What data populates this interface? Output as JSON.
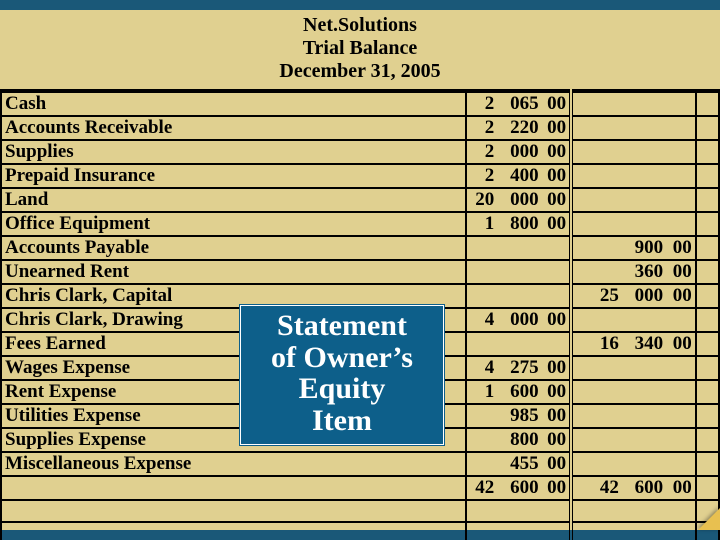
{
  "header": {
    "company": "Net.Solutions",
    "title": "Trial Balance",
    "date": "December 31, 2005"
  },
  "columns": {
    "debit_label": "",
    "credit_label": ""
  },
  "rows": [
    {
      "name": "Cash",
      "d1": "2",
      "d2": "065",
      "d3": "00",
      "c1": "",
      "c2": "",
      "c3": ""
    },
    {
      "name": "Accounts Receivable",
      "d1": "2",
      "d2": "220",
      "d3": "00",
      "c1": "",
      "c2": "",
      "c3": ""
    },
    {
      "name": "Supplies",
      "d1": "2",
      "d2": "000",
      "d3": "00",
      "c1": "",
      "c2": "",
      "c3": ""
    },
    {
      "name": "Prepaid Insurance",
      "d1": "2",
      "d2": "400",
      "d3": "00",
      "c1": "",
      "c2": "",
      "c3": ""
    },
    {
      "name": "Land",
      "d1": "20",
      "d2": "000",
      "d3": "00",
      "c1": "",
      "c2": "",
      "c3": ""
    },
    {
      "name": "Office Equipment",
      "d1": "1",
      "d2": "800",
      "d3": "00",
      "c1": "",
      "c2": "",
      "c3": ""
    },
    {
      "name": "Accounts Payable",
      "d1": "",
      "d2": "",
      "d3": "",
      "c1": "",
      "c2": "900",
      "c3": "00"
    },
    {
      "name": "Unearned Rent",
      "d1": "",
      "d2": "",
      "d3": "",
      "c1": "",
      "c2": "360",
      "c3": "00"
    },
    {
      "name": "Chris Clark, Capital",
      "d1": "",
      "d2": "",
      "d3": "",
      "c1": "25",
      "c2": "000",
      "c3": "00"
    },
    {
      "name": "Chris Clark, Drawing",
      "d1": "4",
      "d2": "000",
      "d3": "00",
      "c1": "",
      "c2": "",
      "c3": ""
    },
    {
      "name": "Fees Earned",
      "d1": "",
      "d2": "",
      "d3": "",
      "c1": "16",
      "c2": "340",
      "c3": "00"
    },
    {
      "name": "Wages Expense",
      "d1": "4",
      "d2": "275",
      "d3": "00",
      "c1": "",
      "c2": "",
      "c3": ""
    },
    {
      "name": "Rent Expense",
      "d1": "1",
      "d2": "600",
      "d3": "00",
      "c1": "",
      "c2": "",
      "c3": ""
    },
    {
      "name": "Utilities Expense",
      "d1": "",
      "d2": "985",
      "d3": "00",
      "c1": "",
      "c2": "",
      "c3": ""
    },
    {
      "name": "Supplies Expense",
      "d1": "",
      "d2": "800",
      "d3": "00",
      "c1": "",
      "c2": "",
      "c3": ""
    },
    {
      "name": "Miscellaneous Expense",
      "d1": "",
      "d2": "455",
      "d3": "00",
      "c1": "",
      "c2": "",
      "c3": ""
    }
  ],
  "totals": {
    "d1": "42",
    "d2": "600",
    "d3": "00",
    "c1": "42",
    "c2": "600",
    "c3": "00"
  },
  "callout": {
    "line1": "Statement",
    "line2": "of Owner’s",
    "line3": "Equity",
    "line4": "Item"
  },
  "style": {
    "paper_color": "#e0d090",
    "frame_color": "#1a5878",
    "callout_bg": "#0d5f8a",
    "callout_text": "#ffffff",
    "ruling_color": "#000000",
    "body_font": "Times New Roman",
    "body_fontsize_pt": 14,
    "header_fontsize_pt": 15,
    "callout_fontsize_pt": 22
  }
}
